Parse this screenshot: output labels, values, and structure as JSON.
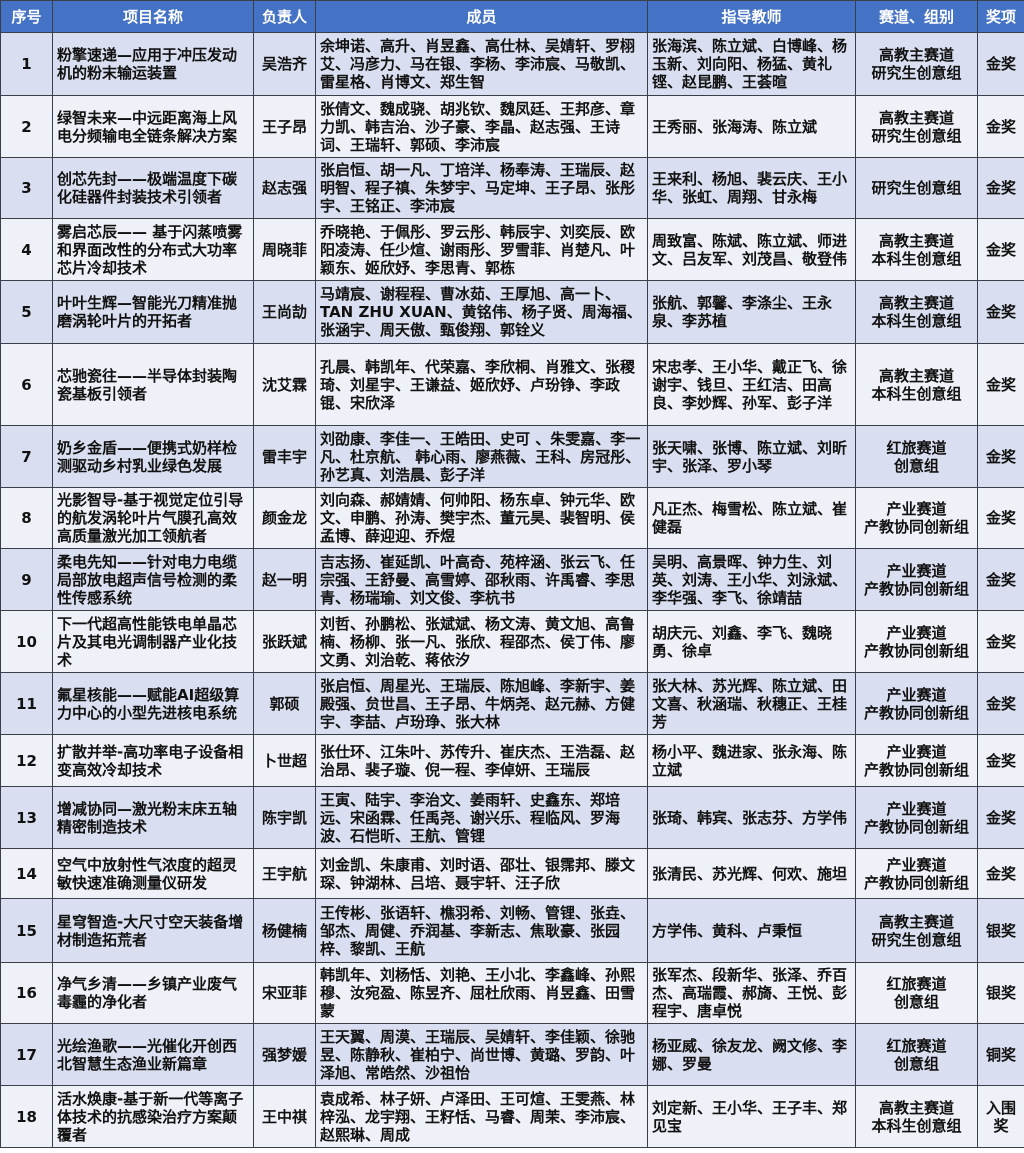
{
  "header": [
    "序号",
    "项目名称",
    "负责人",
    "成员",
    "指导教师",
    "赛道、组别",
    "奖项"
  ],
  "colors": {
    "header_bg": "#4472c4",
    "row_odd": "#d9dff0",
    "row_even": "#eef1f8"
  },
  "rows": [
    {
      "no": "1",
      "project": "粉擎速递—应用于冲压发动机的粉末输运装置",
      "leader": "吴浩齐",
      "members": "余坤诺、高升、肖昱鑫、高仕林、吴婧轩、罗栩艾、冯彦力、马在银、李杨、李沛宸、马敬凯、雷星格、肖博文、郑生智",
      "advisors": "张海滨、陈立斌、白博峰、杨玉新、刘向阳、杨猛、黄礼铿、赵昆鹏、王荟暄",
      "track": "高教主赛道",
      "group": "研究生创意组",
      "award": "金奖"
    },
    {
      "no": "2",
      "project": "绿智未来—中远距离海上风电分频输电全链条解决方案",
      "leader": "王子昂",
      "members": "张倩文、魏成骁、胡兆钦、魏凤廷、王邦彦、章力凯、韩吉治、沙子豪、李晶、赵志强、王诗词、王瑞轩、郭硕、李沛宸",
      "advisors": "王秀丽、张海涛、陈立斌",
      "track": "高教主赛道",
      "group": "研究生创意组",
      "award": "金奖"
    },
    {
      "no": "3",
      "project": "创芯先封——极端温度下碳化硅器件封装技术引领者",
      "leader": "赵志强",
      "members": "张启恒、胡一凡、丁培洋、杨奉涛、王瑞辰、赵明智、程子禛、朱梦宇、马定坤、王子昂、张彤宇、王铭正、李沛宸",
      "advisors": "王来利、杨旭、裴云庆、王小华、张虹、周翔、甘永梅",
      "track": "",
      "group": "研究生创意组",
      "award": "金奖"
    },
    {
      "no": "4",
      "project": "雾启芯辰—— 基于闪蒸喷雾和界面改性的分布式大功率芯片冷却技术",
      "leader": "周晓菲",
      "members": "乔晓艳、于佩彤、罗云彤、韩辰宇、刘奕辰、欧阳凌涛、任少煊、谢雨彤、罗雪菲、肖楚凡、叶颖东、姬欣妤、李思青、郭栋",
      "advisors": "周致富、陈斌、陈立斌、师进文、吕友军、刘茂昌、敬登伟",
      "track": "高教主赛道",
      "group": "本科生创意组",
      "award": "金奖"
    },
    {
      "no": "5",
      "project": "叶叶生辉—智能光刀精准抛磨涡轮叶片的开拓者",
      "leader": "王尚劼",
      "members": "马靖宸、谢程程、曹冰茹、王厚旭、高一卜、TAN ZHU XUAN、黄铭伟、杨子贤、周海福、张涵宇、周天傲、甄俊翔、郭铨义",
      "advisors": "张航、郭馨、李涤尘、王永泉、李苏植",
      "track": "高教主赛道",
      "group": "本科生创意组",
      "award": "金奖"
    },
    {
      "no": "6",
      "project": "芯驰瓷往——半导体封装陶瓷基板引领者",
      "leader": "沈艾霖",
      "members": "孔晨、韩凯年、代荣嘉、李欣桐、肖雅文、张稷琦、刘星宇、王谦益、姬欣妤、卢玢铮、李政锟、宋欣泽",
      "advisors": "宋忠孝、王小华、戴正飞、徐谢宇、钱旦、王红洁、田高良、李妙辉、孙军、彭子洋",
      "track": "高教主赛道",
      "group": "本科生创意组",
      "award": "金奖"
    },
    {
      "no": "7",
      "project": "奶乡金盾——便携式奶样检测驱动乡村乳业绿色发展",
      "leader": "雷丰宇",
      "members": "刘劭康、李佳一、王皓田、史可 、朱雯嘉、李一凡、杜京航、 韩心雨、廖燕薇、王科、房冠彤、孙艺真、刘浩晨、彭子洋",
      "advisors": "张天啸、张博、陈立斌、刘昕宇、张泽、罗小琴",
      "track": "红旅赛道",
      "group": "创意组",
      "award": "金奖"
    },
    {
      "no": "8",
      "project": "光影智导-基于视觉定位引导的航发涡轮叶片气膜孔高效高质量激光加工领航者",
      "leader": "颜金龙",
      "members": "刘向森、郝婧婧、何帅阳、杨东卓、钟元华、欧文、申鹏、孙涛、樊宇杰、董元昊、裴智明、侯孟博、薛迎迎、乔煜",
      "advisors": "凡正杰、梅雪松、陈立斌、崔健磊",
      "track": "产业赛道",
      "group": "产教协同创新组",
      "award": "金奖"
    },
    {
      "no": "9",
      "project": "柔电先知——针对电力电缆局部放电超声信号检测的柔性传感系统",
      "leader": "赵一明",
      "members": "吉志扬、崔延凯、叶高奇、苑梓涵、张云飞、任宗强、王舒曼、高雪婷、邵秋雨、许禹睿、李思青、杨瑞瑜、刘文俊、李杭书",
      "advisors": "吴明、高景晖、钟力生、刘英、刘涛、王小华、刘泳斌、李华强、李飞、徐靖喆",
      "track": "产业赛道",
      "group": "产教协同创新组",
      "award": "金奖"
    },
    {
      "no": "10",
      "project": "下一代超高性能铁电单晶芯片及其电光调制器产业化技术",
      "leader": "张跃斌",
      "members": "刘哲、孙鹏松、张斌斌、杨文涛、黄文旭、高鲁楠、杨柳、张一凡、张欣、程邵杰、侯丁伟、廖文勇、刘治乾、蒋依汐",
      "advisors": "胡庆元、刘鑫、李飞、魏晓勇、徐卓",
      "track": "产业赛道",
      "group": "产教协同创新组",
      "award": "金奖"
    },
    {
      "no": "11",
      "project": "氟星核能——赋能AI超级算力中心的小型先进核电系统",
      "leader": "郭硕",
      "members": "张启恒、周星光、王瑞辰、陈旭峰、李新宇、姜殿强、贠世昌、王子昂、牛炳尧、赵元赫、方健宇、李喆、卢玢琤、张大林",
      "advisors": "张大林、苏光辉、陈立斌、田文喜、秋涵瑞、秋穗正、王桂芳",
      "track": "产业赛道",
      "group": "产教协同创新组",
      "award": "金奖"
    },
    {
      "no": "12",
      "project": "扩散并举-高功率电子设备相变高效冷却技术",
      "leader": "卜世超",
      "members": "张仕环、江朱叶、苏传升、崔庆杰、王浩磊、赵治昂、裴子璇、倪一程、李倬妍、王瑞辰",
      "advisors": "杨小平、魏进家、张永海、陈立斌",
      "track": "产业赛道",
      "group": "产教协同创新组",
      "award": "金奖"
    },
    {
      "no": "13",
      "project": "增减协同—激光粉末床五轴精密制造技术",
      "leader": "陈宇凯",
      "members": "王寅、陆宇、李治文、姜雨轩、史鑫东、郑培远、宋函霖、任禹尧、谢兴乐、程临风、罗海波、石恺昕、王航、管锂",
      "advisors": "张琦、韩宾、张志芬、方学伟",
      "track": "产业赛道",
      "group": "产教协同创新组",
      "award": "金奖"
    },
    {
      "no": "14",
      "project": "空气中放射性气浓度的超灵敏快速准确测量仪研发",
      "leader": "王宇航",
      "members": "刘金凯、朱康甫、刘时语、邵壮、银霈邦、滕文琛、钟湖林、吕培、聂宇轩、汪子欣",
      "advisors": "张清民、苏光辉、何欢、施坦",
      "track": "产业赛道",
      "group": "产教协同创新组",
      "award": "金奖"
    },
    {
      "no": "15",
      "project": "星穹智造-大尺寸空天装备增材制造拓荒者",
      "leader": "杨健楠",
      "members": "王传彬、张语轩、樵羽希、刘畅、管锂、张垚、邹杰、周健、乔润基、李新志、焦耿豪、张园梓、黎凯、王航",
      "advisors": "方学伟、黄科、卢秉恒",
      "track": "高教主赛道",
      "group": "研究生创意组",
      "award": "银奖"
    },
    {
      "no": "16",
      "project": "净气乡清——乡镇产业废气毒霾的净化者",
      "leader": "宋亚菲",
      "members": "韩凯年、刘杨恬、刘艳、王小北、李鑫峰、孙熙穆、汝宛盈、陈昱齐、屈杜欣雨、肖昱鑫、田雪蒙",
      "advisors": "张军杰、段新华、张泽、乔百杰、高瑞霞、郝旖、王悦、彭程宇、唐卓悦",
      "track": "红旅赛道",
      "group": "创意组",
      "award": "银奖"
    },
    {
      "no": "17",
      "project": "光绘渔歌——光催化开创西北智慧生态渔业新篇章",
      "leader": "强梦媛",
      "members": "王天翼、周漠、王瑞辰、吴婧轩、李佳颖、徐驰昱、陈静秋、崔柏宁、尚世博、黄璐、罗韵、叶泽旭、常皓然、沙祖怡",
      "advisors": "杨亚威、徐友龙、阙文修、李娜、罗曼",
      "track": "红旅赛道",
      "group": "创意组",
      "award": "铜奖"
    },
    {
      "no": "18",
      "project": "活水焕康-基于新一代等离子体技术的抗感染治疗方案颠覆者",
      "leader": "王中祺",
      "members": "袁成希、林子妍、卢泽田、王可煊、王雯燕、林梓泓、龙宇翔、王籽恬、马睿、周茉、李沛宸、赵熙琳、周成",
      "advisors": "刘定新、王小华、王子丰、郑见宝",
      "track": "高教主赛道",
      "group": "本科生创意组",
      "award": "入围奖"
    }
  ]
}
